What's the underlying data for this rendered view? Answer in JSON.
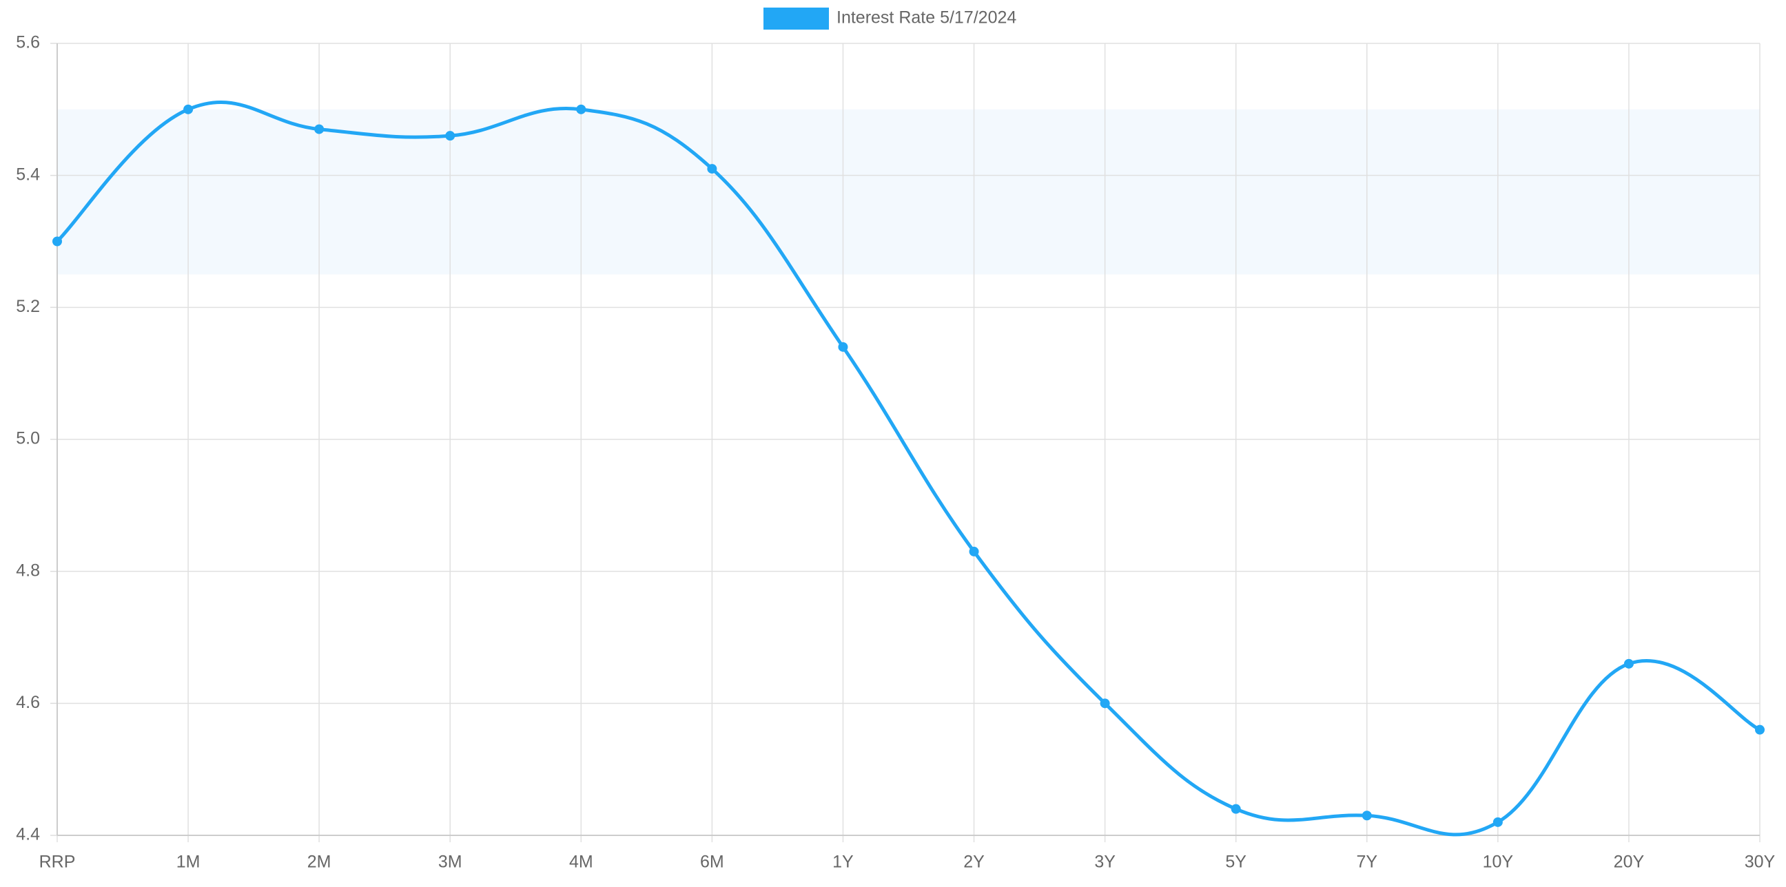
{
  "chart_data": {
    "type": "line",
    "categories": [
      "RRP",
      "1M",
      "2M",
      "3M",
      "4M",
      "6M",
      "1Y",
      "2Y",
      "3Y",
      "5Y",
      "7Y",
      "10Y",
      "20Y",
      "30Y"
    ],
    "series": [
      {
        "name": "Interest Rate 5/17/2024",
        "color": "#22a7f5",
        "values": [
          5.3,
          5.5,
          5.47,
          5.46,
          5.5,
          5.41,
          5.14,
          4.83,
          4.6,
          4.44,
          4.43,
          4.42,
          4.66,
          4.56
        ]
      }
    ],
    "band": [
      5.25,
      5.5
    ],
    "band_color": "#f3f9fe",
    "ylim": [
      4.4,
      5.6
    ],
    "yticks": [
      4.4,
      4.6,
      4.8,
      {
        "value": 5,
        "label": "5.0"
      },
      5.2,
      5.4,
      5.6
    ],
    "grid": true,
    "legend": "top"
  }
}
